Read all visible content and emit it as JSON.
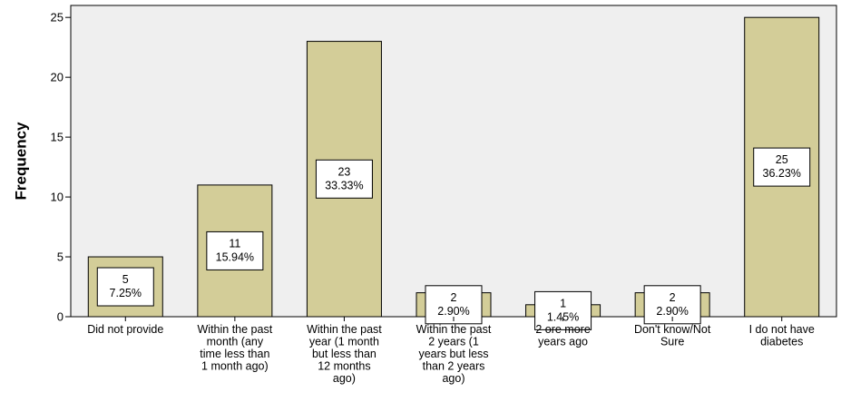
{
  "chart_data": {
    "type": "bar",
    "title": "",
    "xlabel": "",
    "ylabel": "Frequency",
    "ylim": [
      0,
      26
    ],
    "yticks": [
      0,
      5,
      10,
      15,
      20,
      25
    ],
    "grid": false,
    "categories": [
      [
        "Did not provide"
      ],
      [
        "Within the past",
        "month (any",
        "time less than",
        "1 month ago)"
      ],
      [
        "Within the past",
        "year (1 month",
        "but less than",
        "12 months",
        "ago)"
      ],
      [
        "Within the past",
        "2 years (1",
        "years but less",
        "than 2 years",
        "ago)"
      ],
      [
        "2 ore more",
        "years ago"
      ],
      [
        "Don't know/Not",
        "Sure"
      ],
      [
        "I do not have",
        "diabetes"
      ]
    ],
    "values": [
      5,
      11,
      23,
      2,
      1,
      2,
      25
    ],
    "percents": [
      "7.25%",
      "15.94%",
      "33.33%",
      "2.90%",
      "1.45%",
      "2.90%",
      "36.23%"
    ],
    "colors": {
      "bar_fill": "#d3cd98",
      "bar_stroke": "#000000",
      "plot_background": "#efefef",
      "label_box": "#ffffff"
    }
  }
}
